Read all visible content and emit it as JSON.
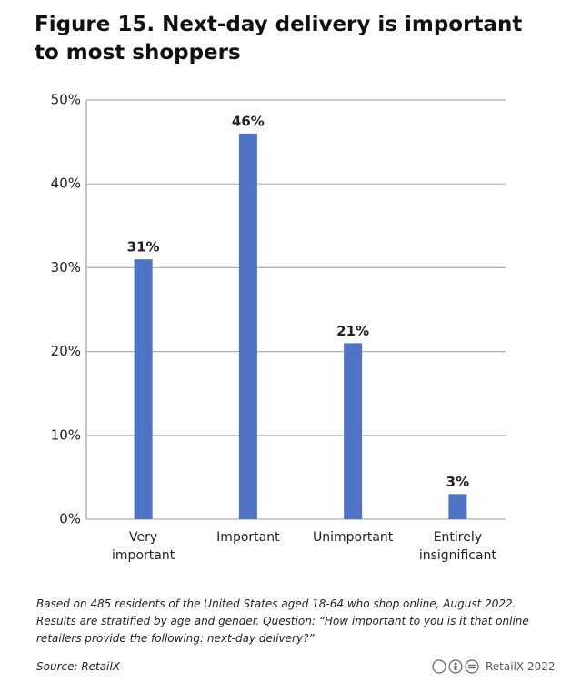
{
  "chart_data": {
    "type": "bar",
    "title": "Figure 15. Next-day delivery is important to most shoppers",
    "categories": [
      "Very important",
      "Important",
      "Unimportant",
      "Entirely insignificant"
    ],
    "values": [
      31,
      46,
      21,
      3
    ],
    "value_labels": [
      "31%",
      "46%",
      "21%",
      "3%"
    ],
    "color": "#4f74c6",
    "ylim": [
      0,
      50
    ],
    "yticks": [
      {
        "value": 0,
        "label": "0%"
      },
      {
        "value": 10,
        "label": "10%"
      },
      {
        "value": 20,
        "label": "20%"
      },
      {
        "value": 30,
        "label": "30%"
      },
      {
        "value": 40,
        "label": "40%"
      },
      {
        "value": 50,
        "label": "50%"
      }
    ],
    "grid": true,
    "footnote": "Based on 485 residents of the United States aged 18-64 who shop online, August 2022. Results are stratified by age and gender. Question: “How important to you is it that online retailers provide the following: next-day delivery?”",
    "source": "Source: RetailX",
    "credit": "RetailX 2022"
  }
}
